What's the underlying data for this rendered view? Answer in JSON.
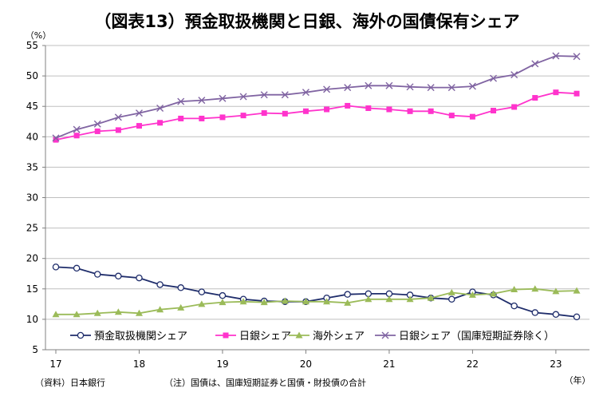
{
  "chart_data": {
    "type": "line",
    "title": "（図表13）預金取扱機関と日銀、海外の国債保有シェア",
    "y_unit": "（%）",
    "x_unit": "（年）",
    "source": "（資料）日本銀行",
    "note": "（注）国債は、国庫短期証券と国債・財投債の合計",
    "ylim": [
      5,
      55
    ],
    "yticks": [
      "5",
      "10",
      "15",
      "20",
      "25",
      "30",
      "35",
      "40",
      "45",
      "50",
      "55"
    ],
    "xticks": [
      "17",
      "18",
      "19",
      "20",
      "21",
      "22",
      "23"
    ],
    "x_quarters": [
      "2017Q1",
      "2017Q2",
      "2017Q3",
      "2017Q4",
      "2018Q1",
      "2018Q2",
      "2018Q3",
      "2018Q4",
      "2019Q1",
      "2019Q2",
      "2019Q3",
      "2019Q4",
      "2020Q1",
      "2020Q2",
      "2020Q3",
      "2020Q4",
      "2021Q1",
      "2021Q2",
      "2021Q3",
      "2021Q4",
      "2022Q1",
      "2022Q2",
      "2022Q3",
      "2022Q4",
      "2023Q1",
      "2023Q2"
    ],
    "grid": "horizontal",
    "legend_position": "bottom",
    "series": [
      {
        "name": "預金取扱機関シェア",
        "color": "#1f2d6b",
        "marker": "circle",
        "values": [
          18.6,
          18.4,
          17.4,
          17.1,
          16.8,
          15.7,
          15.2,
          14.5,
          13.9,
          13.3,
          13.0,
          12.9,
          12.9,
          13.5,
          14.1,
          14.2,
          14.2,
          14.0,
          13.5,
          13.3,
          14.5,
          14.0,
          12.2,
          11.1,
          10.8,
          10.4
        ]
      },
      {
        "name": "日銀シェア",
        "color": "#ff33cc",
        "marker": "square",
        "values": [
          39.5,
          40.2,
          40.9,
          41.1,
          41.8,
          42.3,
          43.0,
          43.0,
          43.2,
          43.5,
          43.9,
          43.8,
          44.2,
          44.5,
          45.1,
          44.7,
          44.5,
          44.2,
          44.2,
          43.5,
          43.3,
          44.3,
          44.9,
          46.4,
          47.3,
          47.1
        ]
      },
      {
        "name": "海外シェア",
        "color": "#9bbb59",
        "marker": "triangle",
        "values": [
          10.8,
          10.8,
          11.0,
          11.2,
          11.0,
          11.6,
          11.9,
          12.5,
          12.8,
          12.9,
          12.8,
          13.0,
          12.9,
          12.9,
          12.7,
          13.3,
          13.3,
          13.3,
          13.5,
          14.4,
          14.0,
          14.2,
          14.9,
          15.0,
          14.6,
          14.7
        ]
      },
      {
        "name": "日銀シェア（国庫短期証券除く）",
        "color": "#8064a2",
        "marker": "x",
        "values": [
          39.8,
          41.2,
          42.1,
          43.2,
          43.9,
          44.7,
          45.8,
          46.0,
          46.3,
          46.6,
          46.9,
          46.9,
          47.3,
          47.8,
          48.1,
          48.4,
          48.4,
          48.2,
          48.1,
          48.1,
          48.3,
          49.6,
          50.2,
          52.0,
          53.3,
          53.2
        ]
      }
    ]
  }
}
